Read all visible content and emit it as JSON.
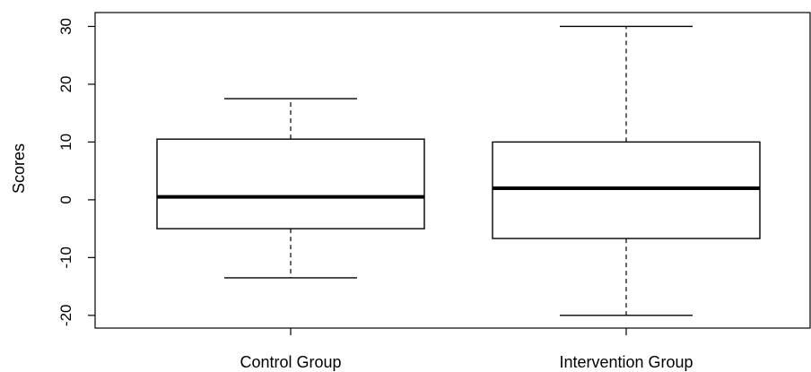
{
  "chart_data": {
    "type": "boxplot",
    "title": "",
    "xlabel": "",
    "ylabel": "Scores",
    "categories": [
      "Control Group",
      "Intervention Group"
    ],
    "boxes": [
      {
        "category": "Control Group",
        "whisker_low": -13.5,
        "q1": -5.0,
        "median": 0.5,
        "q3": 10.5,
        "whisker_high": 17.5
      },
      {
        "category": "Intervention Group",
        "whisker_low": -20.0,
        "q1": -6.7,
        "median": 2.0,
        "q3": 10.0,
        "whisker_high": 30.0
      }
    ],
    "yticks": [
      30,
      20,
      10,
      0,
      -10,
      -20
    ],
    "ytick_labels": [
      "30",
      "20",
      "10",
      "0",
      "-10",
      "-20"
    ],
    "ylim": [
      -22.2,
      32.4
    ],
    "grid": false
  },
  "colors": {
    "box_fill": "#ffffff",
    "stroke": "#000000"
  }
}
